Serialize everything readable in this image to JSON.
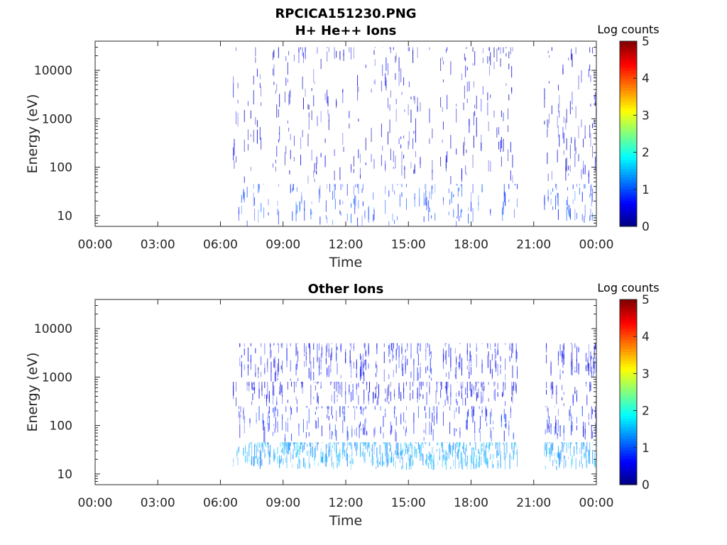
{
  "figure_title": "RPCICA151230.PNG",
  "colorbar": {
    "label": "Log counts",
    "ticks": [
      "0",
      "1",
      "2",
      "3",
      "4",
      "5"
    ],
    "range": [
      0,
      5
    ],
    "colormap": "jet"
  },
  "chart_data": [
    {
      "type": "heatmap",
      "title": "H+ He++ Ions",
      "xlabel": "Time",
      "ylabel": "Energy (eV)",
      "x_ticks": [
        "00:00",
        "03:00",
        "06:00",
        "09:00",
        "12:00",
        "15:00",
        "18:00",
        "21:00",
        "00:00"
      ],
      "xlim_hours": [
        0,
        24
      ],
      "y_ticks": [
        {
          "value": 10,
          "label": "10"
        },
        {
          "value": 100,
          "label": "100"
        },
        {
          "value": 1000,
          "label": "1000"
        },
        {
          "value": 10000,
          "label": "10000"
        }
      ],
      "ylim": [
        6,
        40000
      ],
      "yscale": "log",
      "z_label": "Log counts",
      "zlim": [
        0,
        5
      ],
      "data_intervals_hours": [
        [
          6.6,
          10.9
        ],
        [
          11.0,
          20.2
        ],
        [
          21.5,
          24.0
        ]
      ],
      "bands": [
        {
          "e_min": 6,
          "e_max": 45,
          "log_counts": 0.9
        },
        {
          "e_min": 45,
          "e_max": 30000,
          "log_counts": 0.4
        }
      ]
    },
    {
      "type": "heatmap",
      "title": "Other Ions",
      "xlabel": "Time",
      "ylabel": "Energy (eV)",
      "x_ticks": [
        "00:00",
        "03:00",
        "06:00",
        "09:00",
        "12:00",
        "15:00",
        "18:00",
        "21:00",
        "00:00"
      ],
      "xlim_hours": [
        0,
        24
      ],
      "y_ticks": [
        {
          "value": 10,
          "label": "10"
        },
        {
          "value": 100,
          "label": "100"
        },
        {
          "value": 1000,
          "label": "1000"
        },
        {
          "value": 10000,
          "label": "10000"
        }
      ],
      "ylim": [
        6,
        40000
      ],
      "yscale": "log",
      "z_label": "Log counts",
      "zlim": [
        0,
        5
      ],
      "data_intervals_hours": [
        [
          6.6,
          10.9
        ],
        [
          11.0,
          20.2
        ],
        [
          21.5,
          24.0
        ]
      ],
      "bands": [
        {
          "e_min": 12,
          "e_max": 45,
          "log_counts": 1.4
        },
        {
          "e_min": 45,
          "e_max": 250,
          "log_counts": 0.7
        },
        {
          "e_min": 250,
          "e_max": 800,
          "log_counts": 0.5
        },
        {
          "e_min": 800,
          "e_max": 5000,
          "log_counts": 0.6
        }
      ]
    }
  ]
}
